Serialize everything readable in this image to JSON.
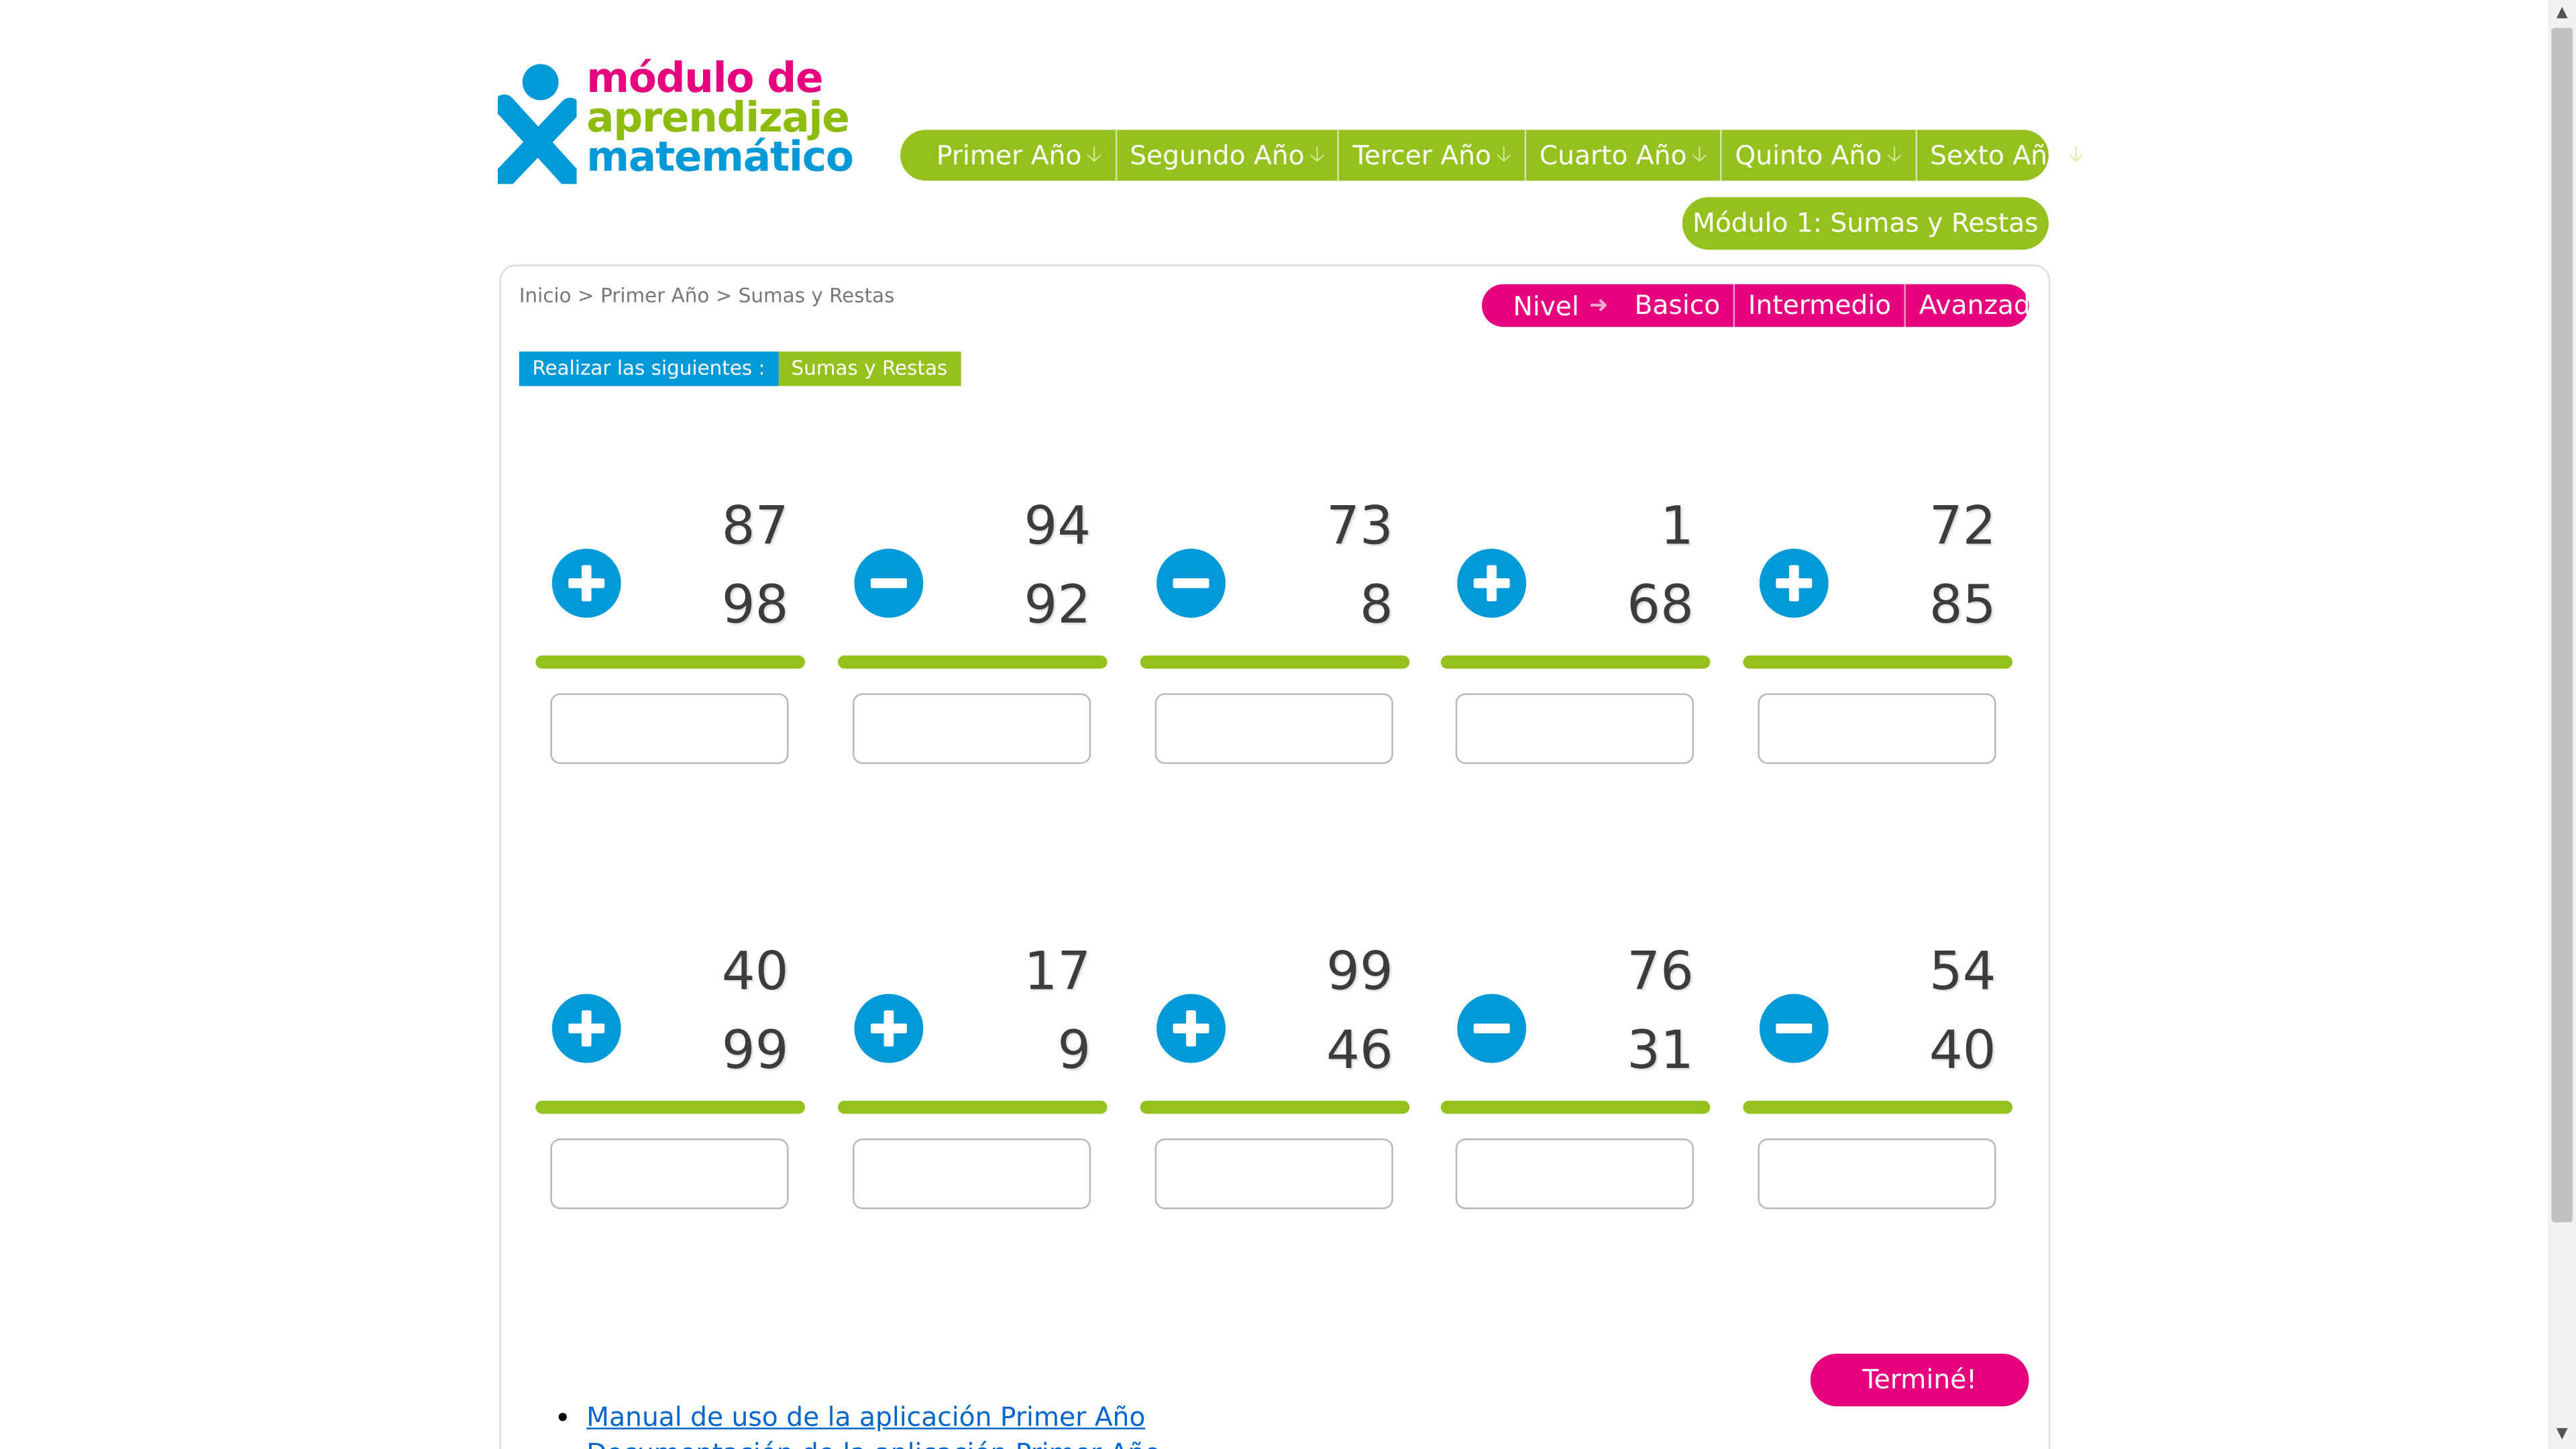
{
  "logo": {
    "line1": "módulo de",
    "line2": "aprendizaje",
    "line3": "matemático"
  },
  "year_nav": [
    {
      "label": "Primer Año"
    },
    {
      "label": "Segundo Año"
    },
    {
      "label": "Tercer Año"
    },
    {
      "label": "Cuarto Año"
    },
    {
      "label": "Quinto Año"
    },
    {
      "label": "Sexto Año"
    }
  ],
  "module_button": "Módulo 1: Sumas y Restas",
  "breadcrumb": {
    "home": "Inicio",
    "sep": ">",
    "year": "Primer Año",
    "topic": "Sumas y Restas"
  },
  "level_nav": {
    "label": "Nivel",
    "items": [
      "Basico",
      "Intermedio",
      "Avanzado"
    ]
  },
  "task": {
    "prefix": "Realizar las siguientes :",
    "topic": "Sumas y Restas"
  },
  "problems": [
    {
      "op": "plus",
      "a": "87",
      "b": "98",
      "answer": ""
    },
    {
      "op": "minus",
      "a": "94",
      "b": "92",
      "answer": ""
    },
    {
      "op": "minus",
      "a": "73",
      "b": "8",
      "answer": ""
    },
    {
      "op": "plus",
      "a": "1",
      "b": "68",
      "answer": ""
    },
    {
      "op": "plus",
      "a": "72",
      "b": "85",
      "answer": ""
    },
    {
      "op": "plus",
      "a": "40",
      "b": "99",
      "answer": ""
    },
    {
      "op": "plus",
      "a": "17",
      "b": "9",
      "answer": ""
    },
    {
      "op": "plus",
      "a": "99",
      "b": "46",
      "answer": ""
    },
    {
      "op": "minus",
      "a": "76",
      "b": "31",
      "answer": ""
    },
    {
      "op": "minus",
      "a": "54",
      "b": "40",
      "answer": ""
    }
  ],
  "finish_button": "Terminé!",
  "links": [
    "Manual de uso de la aplicación Primer Año",
    "Documentación de la aplicación Primer Año"
  ],
  "colors": {
    "green": "#95c11f",
    "pink": "#e6007e",
    "blue": "#0099d8"
  }
}
